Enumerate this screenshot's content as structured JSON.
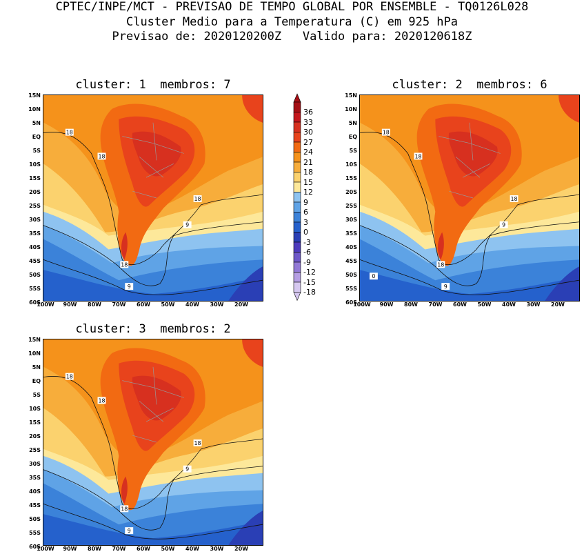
{
  "header": {
    "line1": "CPTEC/INPE/MCT - PREVISAO DE TEMPO GLOBAL POR ENSEMBLE - TQ0126L028",
    "line2": "Cluster Medio para a Temperatura (C) em 925 hPa",
    "line3": "Previsao de: 2020120200Z   Valido para: 2020120618Z"
  },
  "panels": [
    {
      "title": "cluster: 1  membros: 7",
      "labels": [
        "18",
        "18",
        "18",
        "9",
        "18",
        "9"
      ]
    },
    {
      "title": "cluster: 2  membros: 6",
      "labels": [
        "18",
        "18",
        "18",
        "9",
        "18",
        "9",
        "0"
      ]
    },
    {
      "title": "cluster: 3  membros: 2",
      "labels": [
        "18",
        "18",
        "18",
        "9",
        "18",
        "9"
      ]
    }
  ],
  "lat_ticks": [
    "15N",
    "10N",
    "5N",
    "EQ",
    "5S",
    "10S",
    "15S",
    "20S",
    "25S",
    "30S",
    "35S",
    "40S",
    "45S",
    "50S",
    "55S",
    "60S"
  ],
  "lon_ticks": [
    "100W",
    "90W",
    "80W",
    "70W",
    "60W",
    "50W",
    "40W",
    "30W",
    "20W"
  ],
  "colorbar": {
    "labels": [
      "36",
      "33",
      "30",
      "27",
      "24",
      "21",
      "18",
      "15",
      "12",
      "9",
      "6",
      "3",
      "0",
      "-3",
      "-6",
      "-9",
      "-12",
      "-15",
      "-18"
    ],
    "colors": [
      "#a50f15",
      "#c4161c",
      "#d7301f",
      "#e8431c",
      "#f26a12",
      "#f5921b",
      "#f7ad3b",
      "#fbd26e",
      "#fde89a",
      "#8ec3f0",
      "#5fa3e6",
      "#3b82d9",
      "#2561cc",
      "#2a3fb5",
      "#4d3bbd",
      "#6e58c9",
      "#9279d6",
      "#b59ee3",
      "#d6c8f0"
    ]
  }
}
